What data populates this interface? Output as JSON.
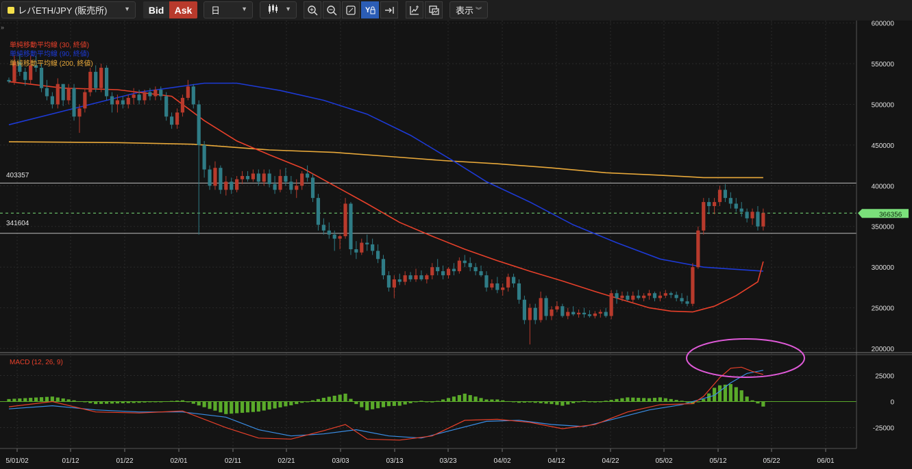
{
  "toolbar": {
    "symbol": "レバETH/JPY (販売所)",
    "bid_label": "Bid",
    "ask_label": "Ask",
    "timeframe": "日",
    "display_label": "表示",
    "icons": [
      "candlestick-icon",
      "zoom-in-icon",
      "zoom-out-icon",
      "fit-icon",
      "auto-scale-icon",
      "scroll-end-icon",
      "indicator-add-icon",
      "screenshot-icon"
    ]
  },
  "legend": {
    "ma30": "単純移動平均線 (30, 終値)",
    "ma90": "単純移動平均線 (90, 終値)",
    "ma200": "単純移動平均線 (200, 終値)",
    "macd": "MACD (12, 26, 9)"
  },
  "colors": {
    "up": "#b83a2c",
    "down": "#2f7c86",
    "ma30": "#e8402a",
    "ma90": "#1d3ad6",
    "ma200": "#e9a93a",
    "macd_line": "#3a8ee6",
    "signal_line": "#e8402a",
    "histogram": "#5aaa2a",
    "price_marker": "#7be07b",
    "annotation": "#e05ad9"
  },
  "price_axis": {
    "ticks": [
      "600000",
      "550000",
      "500000",
      "450000",
      "400000",
      "350000",
      "300000",
      "250000",
      "200000"
    ]
  },
  "macd_axis": {
    "ticks": [
      "25000",
      "0",
      "-25000"
    ]
  },
  "x_axis": {
    "ticks": [
      "5/01/02",
      "01/12",
      "01/22",
      "02/01",
      "02/11",
      "02/21",
      "03/03",
      "03/13",
      "03/23",
      "04/02",
      "04/12",
      "04/22",
      "05/02",
      "05/12",
      "05/22",
      "06/01"
    ]
  },
  "levels": {
    "upper": "403357",
    "lower": "341604"
  },
  "current_price": "366356",
  "chart_data": {
    "type": "candlestick",
    "ylim": [
      195000,
      603000
    ],
    "macd_ylim": [
      -45000,
      45000
    ],
    "start_date": "2025-01-02",
    "ohlc": [
      [
        530000,
        533000,
        526000,
        528000
      ],
      [
        528000,
        560000,
        524000,
        552000
      ],
      [
        552000,
        562000,
        535000,
        540000
      ],
      [
        540000,
        545000,
        523000,
        530000
      ],
      [
        530000,
        560000,
        525000,
        548000
      ],
      [
        548000,
        560000,
        540000,
        545000
      ],
      [
        545000,
        550000,
        515000,
        520000
      ],
      [
        520000,
        530000,
        505000,
        510000
      ],
      [
        510000,
        515000,
        495000,
        500000
      ],
      [
        500000,
        532000,
        495000,
        525000
      ],
      [
        525000,
        525000,
        498000,
        505000
      ],
      [
        505000,
        525000,
        500000,
        520000
      ],
      [
        520000,
        525000,
        480000,
        485000
      ],
      [
        485000,
        500000,
        465000,
        495000
      ],
      [
        495000,
        520000,
        490000,
        515000
      ],
      [
        515000,
        545000,
        510000,
        540000
      ],
      [
        540000,
        548000,
        515000,
        520000
      ],
      [
        520000,
        550000,
        515000,
        545000
      ],
      [
        545000,
        548000,
        505000,
        510000
      ],
      [
        510000,
        515000,
        490000,
        500000
      ],
      [
        500000,
        512000,
        490000,
        505000
      ],
      [
        505000,
        510000,
        495000,
        500000
      ],
      [
        500000,
        512000,
        495000,
        508000
      ],
      [
        508000,
        520000,
        500000,
        512000
      ],
      [
        512000,
        518000,
        500000,
        505000
      ],
      [
        505000,
        518000,
        500000,
        515000
      ],
      [
        515000,
        520000,
        505000,
        510000
      ],
      [
        510000,
        522000,
        505000,
        518000
      ],
      [
        518000,
        522000,
        505000,
        510000
      ],
      [
        510000,
        515000,
        480000,
        485000
      ],
      [
        485000,
        490000,
        470000,
        475000
      ],
      [
        475000,
        495000,
        470000,
        490000
      ],
      [
        490000,
        512000,
        485000,
        508000
      ],
      [
        508000,
        530000,
        505000,
        522000
      ],
      [
        522000,
        525000,
        495000,
        500000
      ],
      [
        500000,
        505000,
        340000,
        450000
      ],
      [
        450000,
        455000,
        410000,
        420000
      ],
      [
        420000,
        425000,
        395000,
        400000
      ],
      [
        400000,
        430000,
        395000,
        422000
      ],
      [
        422000,
        425000,
        390000,
        395000
      ],
      [
        395000,
        412000,
        388000,
        405000
      ],
      [
        405000,
        410000,
        390000,
        395000
      ],
      [
        395000,
        412000,
        392000,
        408000
      ],
      [
        408000,
        418000,
        402000,
        412000
      ],
      [
        412000,
        418000,
        405000,
        408000
      ],
      [
        408000,
        420000,
        405000,
        415000
      ],
      [
        415000,
        420000,
        400000,
        405000
      ],
      [
        405000,
        420000,
        400000,
        415000
      ],
      [
        415000,
        420000,
        398000,
        402000
      ],
      [
        402000,
        412000,
        390000,
        395000
      ],
      [
        395000,
        420000,
        392000,
        412000
      ],
      [
        412000,
        422000,
        400000,
        405000
      ],
      [
        405000,
        412000,
        390000,
        395000
      ],
      [
        395000,
        408000,
        385000,
        400000
      ],
      [
        400000,
        418000,
        395000,
        415000
      ],
      [
        415000,
        425000,
        405000,
        410000
      ],
      [
        410000,
        415000,
        380000,
        385000
      ],
      [
        385000,
        390000,
        345000,
        352000
      ],
      [
        352000,
        360000,
        340000,
        345000
      ],
      [
        345000,
        355000,
        335000,
        340000
      ],
      [
        340000,
        345000,
        320000,
        335000
      ],
      [
        335000,
        340000,
        322000,
        338000
      ],
      [
        338000,
        385000,
        335000,
        378000
      ],
      [
        378000,
        380000,
        315000,
        322000
      ],
      [
        322000,
        332000,
        310000,
        318000
      ],
      [
        318000,
        335000,
        315000,
        330000
      ],
      [
        330000,
        340000,
        320000,
        328000
      ],
      [
        328000,
        335000,
        315000,
        320000
      ],
      [
        320000,
        328000,
        305000,
        310000
      ],
      [
        310000,
        315000,
        285000,
        290000
      ],
      [
        290000,
        295000,
        270000,
        275000
      ],
      [
        275000,
        290000,
        262000,
        285000
      ],
      [
        285000,
        292000,
        278000,
        282000
      ],
      [
        282000,
        295000,
        278000,
        290000
      ],
      [
        290000,
        294000,
        282000,
        285000
      ],
      [
        285000,
        298000,
        282000,
        290000
      ],
      [
        290000,
        296000,
        283000,
        285000
      ],
      [
        285000,
        292000,
        280000,
        290000
      ],
      [
        290000,
        305000,
        285000,
        300000
      ],
      [
        300000,
        310000,
        290000,
        295000
      ],
      [
        295000,
        302000,
        285000,
        290000
      ],
      [
        290000,
        300000,
        286000,
        298000
      ],
      [
        298000,
        305000,
        290000,
        295000
      ],
      [
        295000,
        312000,
        292000,
        308000
      ],
      [
        308000,
        315000,
        300000,
        305000
      ],
      [
        305000,
        312000,
        295000,
        300000
      ],
      [
        300000,
        305000,
        290000,
        295000
      ],
      [
        295000,
        302000,
        288000,
        290000
      ],
      [
        290000,
        295000,
        270000,
        275000
      ],
      [
        275000,
        285000,
        272000,
        280000
      ],
      [
        280000,
        288000,
        268000,
        272000
      ],
      [
        272000,
        280000,
        265000,
        275000
      ],
      [
        275000,
        292000,
        270000,
        288000
      ],
      [
        288000,
        292000,
        275000,
        280000
      ],
      [
        280000,
        285000,
        255000,
        260000
      ],
      [
        260000,
        265000,
        230000,
        235000
      ],
      [
        235000,
        255000,
        205000,
        250000
      ],
      [
        250000,
        255000,
        230000,
        235000
      ],
      [
        235000,
        270000,
        232000,
        262000
      ],
      [
        262000,
        265000,
        235000,
        240000
      ],
      [
        240000,
        252000,
        235000,
        248000
      ],
      [
        248000,
        258000,
        245000,
        252000
      ],
      [
        252000,
        255000,
        238000,
        240000
      ],
      [
        240000,
        250000,
        236000,
        245000
      ],
      [
        245000,
        252000,
        240000,
        242000
      ],
      [
        242000,
        248000,
        238000,
        244000
      ],
      [
        244000,
        250000,
        238000,
        242000
      ],
      [
        242000,
        247000,
        238000,
        240000
      ],
      [
        240000,
        246000,
        237000,
        243000
      ],
      [
        243000,
        248000,
        238000,
        245000
      ],
      [
        245000,
        250000,
        238000,
        240000
      ],
      [
        240000,
        272000,
        236000,
        268000
      ],
      [
        268000,
        272000,
        255000,
        262000
      ],
      [
        262000,
        270000,
        258000,
        265000
      ],
      [
        265000,
        270000,
        258000,
        260000
      ],
      [
        260000,
        270000,
        256000,
        265000
      ],
      [
        265000,
        272000,
        260000,
        262000
      ],
      [
        262000,
        268000,
        258000,
        265000
      ],
      [
        265000,
        272000,
        260000,
        268000
      ],
      [
        268000,
        270000,
        258000,
        262000
      ],
      [
        262000,
        270000,
        258000,
        265000
      ],
      [
        265000,
        272000,
        262000,
        268000
      ],
      [
        268000,
        270000,
        262000,
        266000
      ],
      [
        266000,
        270000,
        258000,
        262000
      ],
      [
        262000,
        268000,
        255000,
        258000
      ],
      [
        258000,
        265000,
        252000,
        255000
      ],
      [
        255000,
        305000,
        252000,
        300000
      ],
      [
        300000,
        350000,
        298000,
        345000
      ],
      [
        345000,
        385000,
        340000,
        380000
      ],
      [
        380000,
        385000,
        365000,
        375000
      ],
      [
        375000,
        385000,
        365000,
        380000
      ],
      [
        380000,
        400000,
        375000,
        395000
      ],
      [
        395000,
        402000,
        380000,
        385000
      ],
      [
        385000,
        392000,
        372000,
        378000
      ],
      [
        378000,
        385000,
        368000,
        372000
      ],
      [
        372000,
        380000,
        362000,
        368000
      ],
      [
        368000,
        372000,
        355000,
        360000
      ],
      [
        360000,
        372000,
        352000,
        368000
      ],
      [
        368000,
        375000,
        345000,
        350000
      ],
      [
        350000,
        372000,
        345000,
        366356
      ]
    ],
    "ma30": [
      [
        0,
        528000
      ],
      [
        10,
        520000
      ],
      [
        20,
        518000
      ],
      [
        30,
        510000
      ],
      [
        36,
        480000
      ],
      [
        42,
        455000
      ],
      [
        48,
        438000
      ],
      [
        54,
        422000
      ],
      [
        60,
        400000
      ],
      [
        66,
        378000
      ],
      [
        72,
        355000
      ],
      [
        78,
        338000
      ],
      [
        84,
        322000
      ],
      [
        90,
        308000
      ],
      [
        96,
        295000
      ],
      [
        102,
        283000
      ],
      [
        108,
        270000
      ],
      [
        114,
        258000
      ],
      [
        118,
        250000
      ],
      [
        122,
        246000
      ],
      [
        126,
        245000
      ],
      [
        130,
        252000
      ],
      [
        134,
        265000
      ],
      [
        138,
        282000
      ],
      [
        139,
        307000
      ]
    ],
    "ma90": [
      [
        0,
        475000
      ],
      [
        12,
        495000
      ],
      [
        24,
        515000
      ],
      [
        36,
        526000
      ],
      [
        42,
        526000
      ],
      [
        50,
        517000
      ],
      [
        58,
        505000
      ],
      [
        66,
        488000
      ],
      [
        74,
        462000
      ],
      [
        82,
        430000
      ],
      [
        88,
        405000
      ],
      [
        96,
        380000
      ],
      [
        104,
        352000
      ],
      [
        112,
        330000
      ],
      [
        120,
        310000
      ],
      [
        128,
        300000
      ],
      [
        139,
        295000
      ]
    ],
    "ma200": [
      [
        0,
        454000
      ],
      [
        20,
        453000
      ],
      [
        34,
        451000
      ],
      [
        48,
        444000
      ],
      [
        60,
        441000
      ],
      [
        70,
        436000
      ],
      [
        80,
        431000
      ],
      [
        90,
        427000
      ],
      [
        100,
        422000
      ],
      [
        110,
        416000
      ],
      [
        120,
        413000
      ],
      [
        128,
        410000
      ],
      [
        134,
        410000
      ],
      [
        139,
        410000
      ]
    ],
    "macd": [
      [
        0,
        -5000
      ],
      [
        8,
        0
      ],
      [
        16,
        -10000
      ],
      [
        24,
        -11000
      ],
      [
        32,
        -9000
      ],
      [
        40,
        -25000
      ],
      [
        46,
        -35000
      ],
      [
        52,
        -36000
      ],
      [
        58,
        -28000
      ],
      [
        62,
        -22000
      ],
      [
        66,
        -36000
      ],
      [
        72,
        -37000
      ],
      [
        78,
        -33000
      ],
      [
        84,
        -18000
      ],
      [
        90,
        -17000
      ],
      [
        96,
        -20000
      ],
      [
        102,
        -26000
      ],
      [
        108,
        -22000
      ],
      [
        114,
        -10000
      ],
      [
        120,
        -3000
      ],
      [
        126,
        -2000
      ],
      [
        128,
        5000
      ],
      [
        131,
        23000
      ],
      [
        133,
        32000
      ],
      [
        135,
        33000
      ],
      [
        137,
        29000
      ],
      [
        139,
        26000
      ]
    ],
    "signal": [
      [
        0,
        -7000
      ],
      [
        8,
        -4000
      ],
      [
        16,
        -8000
      ],
      [
        24,
        -10000
      ],
      [
        32,
        -10000
      ],
      [
        40,
        -15000
      ],
      [
        46,
        -27000
      ],
      [
        52,
        -33000
      ],
      [
        58,
        -31000
      ],
      [
        64,
        -27000
      ],
      [
        70,
        -33000
      ],
      [
        76,
        -35000
      ],
      [
        82,
        -27000
      ],
      [
        88,
        -19000
      ],
      [
        94,
        -18000
      ],
      [
        100,
        -22000
      ],
      [
        106,
        -24000
      ],
      [
        112,
        -16000
      ],
      [
        118,
        -8000
      ],
      [
        124,
        -3000
      ],
      [
        130,
        6000
      ],
      [
        133,
        18000
      ],
      [
        136,
        27000
      ],
      [
        139,
        30000
      ]
    ]
  }
}
